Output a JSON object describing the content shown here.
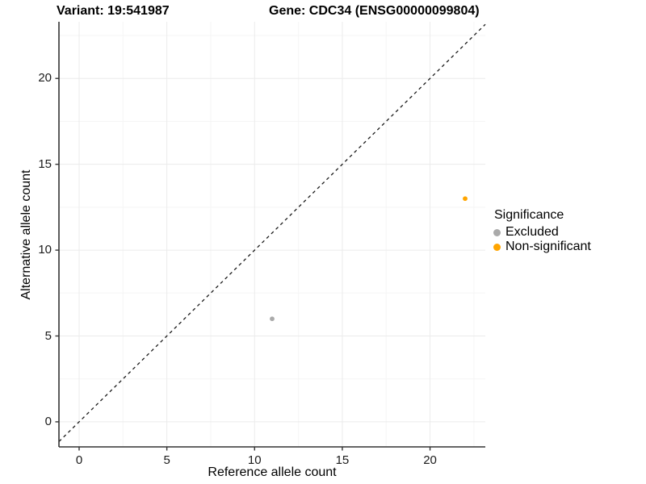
{
  "header": {
    "title_left": "Variant: 19:541987",
    "title_right": "Gene: CDC34 (ENSG00000099804)"
  },
  "chart_data": {
    "type": "scatter",
    "title_left": "Variant: 19:541987",
    "title_right": "Gene: CDC34 (ENSG00000099804)",
    "xlabel": "Reference allele count",
    "ylabel": "Alternative allele count",
    "xlim": [
      -1.15,
      23.15
    ],
    "ylim": [
      -1.46,
      23.3
    ],
    "xticks": [
      0,
      5,
      10,
      15,
      20
    ],
    "yticks": [
      0,
      5,
      10,
      15,
      20
    ],
    "xticks_minor": [
      2.5,
      7.5,
      12.5,
      17.5,
      22.5
    ],
    "yticks_minor": [
      2.5,
      7.5,
      12.5,
      17.5,
      22.5
    ],
    "grid": true,
    "identity_line": {
      "equation": "y = x",
      "style": "dashed",
      "color": "#1a1a1a"
    },
    "series": [
      {
        "name": "Excluded",
        "color": "#AAAAAA",
        "points": [
          {
            "x": 11,
            "y": 6
          }
        ]
      },
      {
        "name": "Non-significant",
        "color": "#FFA500",
        "points": [
          {
            "x": 22,
            "y": 13
          }
        ]
      }
    ],
    "legend": {
      "title": "Significance",
      "position": "right",
      "entries": [
        {
          "label": "Excluded",
          "color": "#AAAAAA"
        },
        {
          "label": "Non-significant",
          "color": "#FFA500"
        }
      ]
    },
    "colors": {
      "axis_line": "#333333",
      "grid_major": "#EBEBEB",
      "grid_minor": "#F5F5F5",
      "text": "#000000"
    }
  }
}
